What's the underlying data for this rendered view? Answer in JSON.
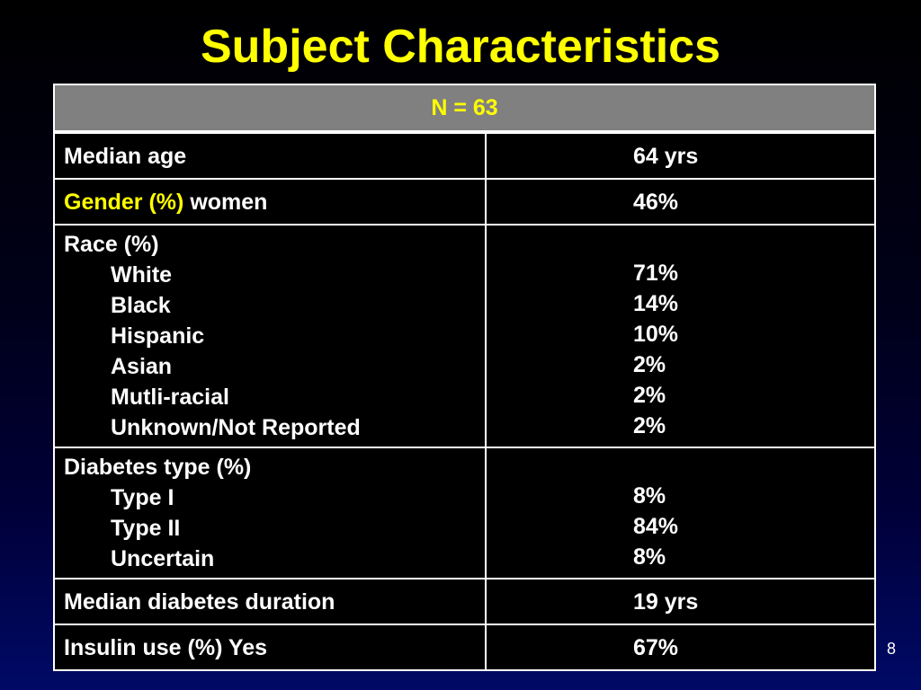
{
  "title": "Subject Characteristics",
  "table": {
    "header": "N = 63",
    "median_age": {
      "label": "Median age",
      "value": "64 yrs"
    },
    "gender": {
      "label_prefix": "Gender (%)",
      "label_suffix": "women",
      "value": "46%"
    },
    "race": {
      "label": "Race (%)",
      "items": [
        {
          "label": "White",
          "value": "71%"
        },
        {
          "label": "Black",
          "value": "14%"
        },
        {
          "label": "Hispanic",
          "value": "10%"
        },
        {
          "label": "Asian",
          "value": "2%"
        },
        {
          "label": "Mutli-racial",
          "value": "2%"
        },
        {
          "label": "Unknown/Not Reported",
          "value": "2%"
        }
      ]
    },
    "diabetes_type": {
      "label": "Diabetes type (%)",
      "items": [
        {
          "label": "Type I",
          "value": "8%"
        },
        {
          "label": "Type II",
          "value": "84%"
        },
        {
          "label": "Uncertain",
          "value": "8%"
        }
      ]
    },
    "diabetes_duration": {
      "label": "Median diabetes duration",
      "value": "19 yrs"
    },
    "insulin": {
      "label": "Insulin use (%) Yes",
      "value": "67%"
    }
  },
  "page_number": "8",
  "colors": {
    "label_yellow": "#ffff00",
    "value_green": "#33ff66",
    "header_gray": "#808080"
  }
}
